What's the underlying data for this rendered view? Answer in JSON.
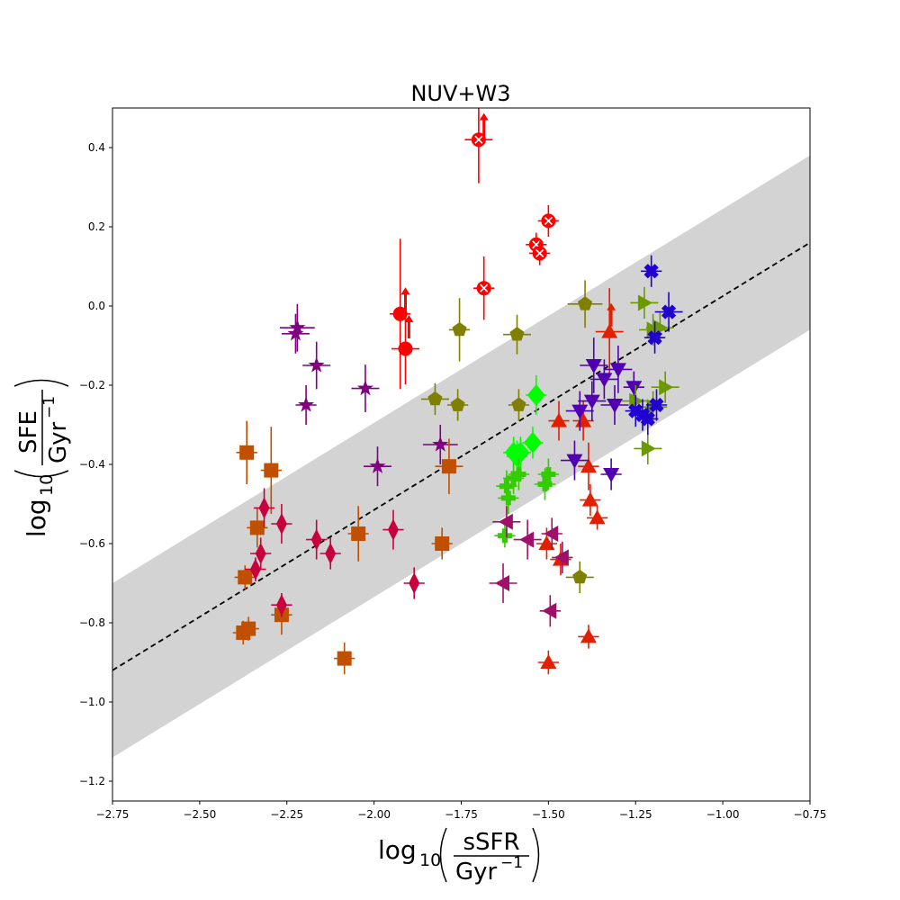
{
  "chart_data": {
    "type": "scatter",
    "title": "NUV+W3",
    "xlabel": {
      "prefix": "log",
      "sub": "10",
      "num": "sSFR",
      "den": "Gyr",
      "den_sup": "−1"
    },
    "ylabel": {
      "prefix": "log",
      "sub": "10",
      "num": "SFE",
      "den": "Gyr",
      "den_sup": "−1"
    },
    "xlim": [
      -2.75,
      -0.75
    ],
    "ylim": [
      -1.25,
      0.5
    ],
    "xticks": [
      -2.75,
      -2.5,
      -2.25,
      -2.0,
      -1.75,
      -1.5,
      -1.25,
      -1.0,
      -0.75
    ],
    "xtick_labels": [
      "−2.75",
      "−2.50",
      "−2.25",
      "−2.00",
      "−1.75",
      "−1.50",
      "−1.25",
      "−1.00",
      "−0.75"
    ],
    "yticks": [
      -1.2,
      -1.0,
      -0.8,
      -0.6,
      -0.4,
      -0.2,
      0.0,
      0.2,
      0.4
    ],
    "ytick_labels": [
      "−1.2",
      "−1.0",
      "−0.8",
      "−0.6",
      "−0.4",
      "−0.2",
      "0.0",
      "0.2",
      "0.4"
    ],
    "fit_line": {
      "slope": 0.54,
      "intercept": 0.565,
      "band_halfwidth": 0.22,
      "style": "dashed",
      "color": "#000000",
      "band_color": "#d3d3d3"
    },
    "series": [
      {
        "name": "red-x-circles",
        "color": "#ff0000",
        "marker": "circle-x",
        "points": [
          [
            -1.7,
            0.42,
            0.04,
            0.11,
            0.11
          ],
          [
            -1.5,
            0.215,
            0.03,
            0.04,
            0.04
          ],
          [
            -1.535,
            0.155,
            0.03,
            0.03,
            0.03
          ],
          [
            -1.525,
            0.133,
            0.03,
            0.03,
            0.03
          ],
          [
            -1.685,
            0.045,
            0.03,
            0.08,
            0.08
          ]
        ],
        "arrows": [
          [
            -1.685,
            0.46
          ]
        ]
      },
      {
        "name": "red-circles",
        "color": "#ff0000",
        "marker": "circle",
        "points": [
          [
            -1.925,
            -0.02,
            0.03,
            0.19,
            0.19
          ],
          [
            -1.91,
            -0.108,
            0.04,
            0.09,
            0.09
          ]
        ],
        "arrows": [
          [
            -1.91,
            0.02
          ],
          [
            -1.9,
            -0.05
          ]
        ]
      },
      {
        "name": "purple-stars",
        "color": "#800080",
        "marker": "star",
        "points": [
          [
            -2.22,
            -0.055,
            0.05,
            0.06,
            0.06
          ],
          [
            -2.225,
            -0.07,
            0.04,
            0.05,
            0.05
          ],
          [
            -2.165,
            -0.15,
            0.04,
            0.06,
            0.06
          ],
          [
            -2.195,
            -0.25,
            0.03,
            0.05,
            0.05
          ],
          [
            -2.025,
            -0.208,
            0.04,
            0.06,
            0.06
          ],
          [
            -1.99,
            -0.405,
            0.04,
            0.05,
            0.05
          ],
          [
            -1.81,
            -0.35,
            0.05,
            0.05,
            0.05
          ]
        ]
      },
      {
        "name": "olive-pentagons",
        "color": "#808000",
        "marker": "pentagon",
        "points": [
          [
            -1.395,
            0.005,
            0.05,
            0.06,
            0.06
          ],
          [
            -1.755,
            -0.06,
            0.03,
            0.08,
            0.08
          ],
          [
            -1.59,
            -0.072,
            0.04,
            0.05,
            0.05
          ],
          [
            -1.825,
            -0.235,
            0.04,
            0.04,
            0.04
          ],
          [
            -1.76,
            -0.25,
            0.03,
            0.04,
            0.04
          ],
          [
            -1.585,
            -0.25,
            0.03,
            0.04,
            0.04
          ],
          [
            -1.41,
            -0.685,
            0.04,
            0.04,
            0.04
          ]
        ]
      },
      {
        "name": "orange-squares",
        "color": "#c05000",
        "marker": "square",
        "points": [
          [
            -2.365,
            -0.37,
            0.03,
            0.08,
            0.08
          ],
          [
            -2.295,
            -0.415,
            0.03,
            0.11,
            0.11
          ],
          [
            -2.335,
            -0.56,
            0.03,
            0.05,
            0.05
          ],
          [
            -2.045,
            -0.575,
            0.03,
            0.07,
            0.07
          ],
          [
            -1.785,
            -0.405,
            0.04,
            0.07,
            0.07
          ],
          [
            -1.805,
            -0.6,
            0.03,
            0.04,
            0.04
          ],
          [
            -2.37,
            -0.685,
            0.03,
            0.03,
            0.03
          ],
          [
            -2.265,
            -0.78,
            0.03,
            0.05,
            0.05
          ],
          [
            -2.375,
            -0.825,
            0.03,
            0.03,
            0.03
          ],
          [
            -2.36,
            -0.815,
            0.03,
            0.03,
            0.03
          ],
          [
            -2.085,
            -0.89,
            0.03,
            0.04,
            0.04
          ]
        ]
      },
      {
        "name": "crimson-diamonds",
        "color": "#c8003c",
        "marker": "diamond",
        "points": [
          [
            -2.315,
            -0.51,
            0.03,
            0.05,
            0.05
          ],
          [
            -2.265,
            -0.55,
            0.03,
            0.05,
            0.05
          ],
          [
            -2.165,
            -0.59,
            0.03,
            0.05,
            0.05
          ],
          [
            -2.325,
            -0.625,
            0.03,
            0.04,
            0.04
          ],
          [
            -2.125,
            -0.625,
            0.03,
            0.04,
            0.04
          ],
          [
            -2.34,
            -0.665,
            0.03,
            0.03,
            0.03
          ],
          [
            -2.265,
            -0.755,
            0.03,
            0.03,
            0.03
          ],
          [
            -1.945,
            -0.565,
            0.03,
            0.05,
            0.05
          ],
          [
            -1.885,
            -0.7,
            0.03,
            0.04,
            0.04
          ]
        ]
      },
      {
        "name": "green-diamonds",
        "color": "#00ff00",
        "marker": "diamond-wide",
        "points": [
          [
            -1.535,
            -0.225,
            0.03,
            0.05,
            0.05
          ],
          [
            -1.545,
            -0.345,
            0.03,
            0.04,
            0.04
          ],
          [
            -1.58,
            -0.37,
            0.03,
            0.04,
            0.04
          ],
          [
            -1.59,
            -0.38,
            0.03,
            0.04,
            0.04
          ],
          [
            -1.6,
            -0.37,
            0.03,
            0.04,
            0.04
          ]
        ]
      },
      {
        "name": "green-plus",
        "color": "#33cc00",
        "marker": "plus",
        "points": [
          [
            -1.585,
            -0.425,
            0.03,
            0.04,
            0.04
          ],
          [
            -1.5,
            -0.425,
            0.03,
            0.04,
            0.04
          ],
          [
            -1.6,
            -0.435,
            0.03,
            0.04,
            0.04
          ],
          [
            -1.51,
            -0.45,
            0.03,
            0.04,
            0.04
          ],
          [
            -1.62,
            -0.455,
            0.03,
            0.04,
            0.04
          ],
          [
            -1.615,
            -0.485,
            0.03,
            0.04,
            0.04
          ],
          [
            -1.625,
            -0.58,
            0.03,
            0.03,
            0.03
          ]
        ]
      },
      {
        "name": "red-up-triangles",
        "color": "#e02000",
        "marker": "triangle-up",
        "points": [
          [
            -1.325,
            -0.065,
            0.04,
            0.11,
            0.11
          ],
          [
            -1.47,
            -0.29,
            0.03,
            0.05,
            0.05
          ],
          [
            -1.4,
            -0.29,
            0.03,
            0.05,
            0.05
          ],
          [
            -1.385,
            -0.405,
            0.03,
            0.06,
            0.06
          ],
          [
            -1.38,
            -0.49,
            0.03,
            0.04,
            0.04
          ],
          [
            -1.36,
            -0.535,
            0.03,
            0.03,
            0.03
          ],
          [
            -1.505,
            -0.6,
            0.03,
            0.04,
            0.04
          ],
          [
            -1.465,
            -0.64,
            0.03,
            0.04,
            0.04
          ],
          [
            -1.385,
            -0.835,
            0.03,
            0.03,
            0.03
          ],
          [
            -1.5,
            -0.9,
            0.03,
            0.03,
            0.03
          ]
        ],
        "arrows": [
          [
            -1.32,
            -0.02
          ]
        ]
      },
      {
        "name": "indigo-down-triangles",
        "color": "#5000b0",
        "marker": "triangle-down",
        "points": [
          [
            -1.37,
            -0.15,
            0.04,
            0.07,
            0.07
          ],
          [
            -1.3,
            -0.16,
            0.04,
            0.06,
            0.06
          ],
          [
            -1.34,
            -0.185,
            0.04,
            0.05,
            0.05
          ],
          [
            -1.255,
            -0.205,
            0.03,
            0.04,
            0.04
          ],
          [
            -1.375,
            -0.24,
            0.04,
            0.05,
            0.05
          ],
          [
            -1.31,
            -0.25,
            0.04,
            0.05,
            0.05
          ],
          [
            -1.41,
            -0.265,
            0.04,
            0.05,
            0.05
          ],
          [
            -1.425,
            -0.39,
            0.04,
            0.05,
            0.05
          ],
          [
            -1.32,
            -0.425,
            0.03,
            0.04,
            0.04
          ]
        ]
      },
      {
        "name": "magenta-left-triangles",
        "color": "#a0106a",
        "marker": "triangle-left",
        "points": [
          [
            -1.62,
            -0.545,
            0.04,
            0.04,
            0.04
          ],
          [
            -1.56,
            -0.59,
            0.04,
            0.05,
            0.05
          ],
          [
            -1.49,
            -0.575,
            0.03,
            0.04,
            0.04
          ],
          [
            -1.46,
            -0.635,
            0.03,
            0.04,
            0.04
          ],
          [
            -1.63,
            -0.7,
            0.04,
            0.05,
            0.05
          ],
          [
            -1.495,
            -0.77,
            0.03,
            0.04,
            0.04
          ]
        ]
      },
      {
        "name": "olive-right-triangles",
        "color": "#6a9a00",
        "marker": "triangle-right",
        "points": [
          [
            -1.225,
            0.008,
            0.04,
            0.04,
            0.04
          ],
          [
            -1.2,
            -0.06,
            0.04,
            0.04,
            0.04
          ],
          [
            -1.18,
            -0.055,
            0.04,
            0.04,
            0.04
          ],
          [
            -1.165,
            -0.205,
            0.04,
            0.04,
            0.04
          ],
          [
            -1.25,
            -0.24,
            0.04,
            0.04,
            0.04
          ],
          [
            -1.2,
            -0.255,
            0.04,
            0.04,
            0.04
          ],
          [
            -1.215,
            -0.36,
            0.04,
            0.04,
            0.04
          ]
        ]
      },
      {
        "name": "blue-x-markers",
        "color": "#2000d0",
        "marker": "x-filled",
        "points": [
          [
            -1.205,
            0.088,
            0.03,
            0.04,
            0.04
          ],
          [
            -1.155,
            -0.015,
            0.04,
            0.05,
            0.05
          ],
          [
            -1.195,
            -0.08,
            0.03,
            0.04,
            0.04
          ],
          [
            -1.25,
            -0.265,
            0.03,
            0.04,
            0.04
          ],
          [
            -1.23,
            -0.275,
            0.03,
            0.04,
            0.04
          ],
          [
            -1.19,
            -0.25,
            0.03,
            0.04,
            0.04
          ],
          [
            -1.215,
            -0.285,
            0.03,
            0.04,
            0.04
          ]
        ]
      }
    ]
  }
}
